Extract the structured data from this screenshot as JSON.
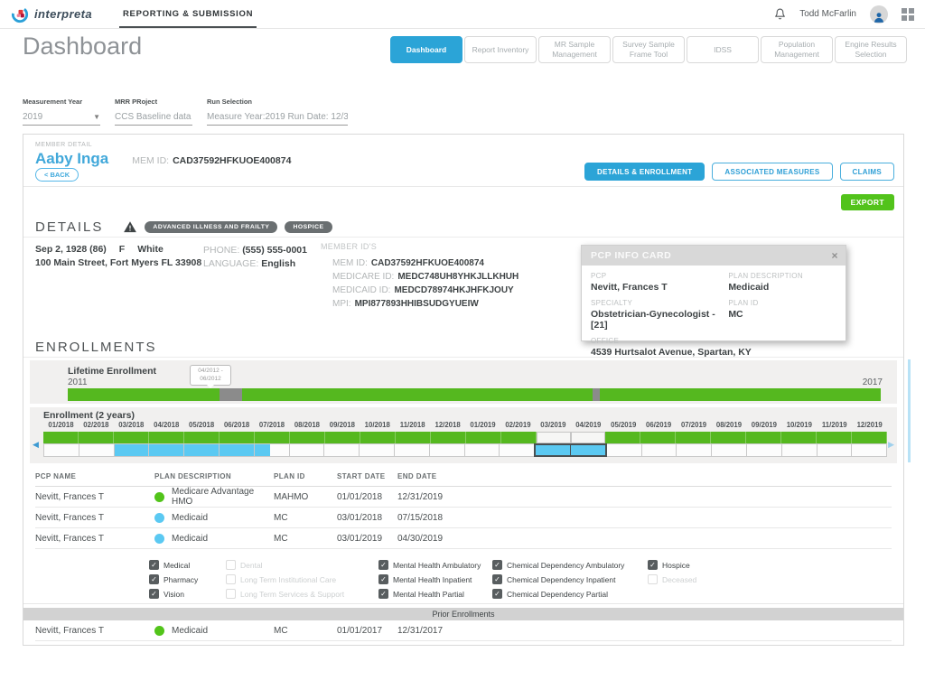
{
  "topbar": {
    "brand": "interpreta",
    "nav": "REPORTING & SUBMISSION",
    "user": "Todd McFarlin"
  },
  "header": {
    "title": "Dashboard",
    "tabs": [
      {
        "label": "Dashboard",
        "active": true
      },
      {
        "label": "Report Inventory",
        "active": false
      },
      {
        "label": "MR Sample Management",
        "active": false
      },
      {
        "label": "Survey Sample Frame Tool",
        "active": false
      },
      {
        "label": "IDSS",
        "active": false
      },
      {
        "label": "Population Management",
        "active": false
      },
      {
        "label": "Engine Results Selection",
        "active": false
      }
    ]
  },
  "filters": [
    {
      "label": "Measurement Year",
      "value": "2019"
    },
    {
      "label": "MRR PRoject",
      "value": "CCS Baseline data"
    },
    {
      "label": "Run Selection",
      "value": "Measure Year:2019  Run Date: 12/31..."
    }
  ],
  "member": {
    "section_label": "MEMBER DETAIL",
    "name": "Aaby Inga",
    "mem_id_label": "MEM ID:",
    "mem_id": "CAD37592HFKUOE400874",
    "back_label": "< BACK",
    "view_buttons": [
      {
        "label": "DETAILS & ENROLLMENT",
        "active": true
      },
      {
        "label": "ASSOCIATED MEASURES",
        "active": false
      },
      {
        "label": "CLAIMS",
        "active": false
      }
    ],
    "export_label": "EXPORT"
  },
  "details": {
    "heading": "DETAILS",
    "badges": [
      "ADVANCED ILLNESS AND FRAILTY",
      "HOSPICE"
    ],
    "dob": "Sep 2, 1928 (86)",
    "gender": "F",
    "race": "White",
    "address": "100 Main Street, Fort Myers FL 33908",
    "phone_label": "PHONE:",
    "phone": "(555) 555-0001",
    "language_label": "LANGUAGE:",
    "language": "English",
    "member_ids_label": "MEMBER ID'S",
    "ids": [
      {
        "label": "MEM ID:",
        "value": "CAD37592HFKUOE400874"
      },
      {
        "label": "MEDICARE ID:",
        "value": "MEDC748UH8YHKJLLKHUH"
      },
      {
        "label": "MEDICAID ID:",
        "value": "MEDCD78974HKJHFKJOUY"
      },
      {
        "label": "MPI:",
        "value": "MPI877893HHIBSUDGYUEIW"
      }
    ]
  },
  "pcp_card": {
    "title": "PCP INFO CARD",
    "close_icon": "×",
    "fields": [
      {
        "label": "PCP",
        "value": "Nevitt, Frances T"
      },
      {
        "label": "PLAN DESCRIPTION",
        "value": "Medicaid"
      },
      {
        "label": "SPECIALTY",
        "value": "Obstetrician-Gynecologist - [21]"
      },
      {
        "label": "PLAN ID",
        "value": "MC"
      },
      {
        "label": "OFFICE",
        "value": "4539 Hurtsalot Avenue, Spartan, KY"
      }
    ]
  },
  "enrollments": {
    "heading": "ENROLLMENTS",
    "lifetime": {
      "label": "Lifetime Enrollment",
      "start_year": "2011",
      "end_year": "2017",
      "tooltip_line1": "04/2012 -",
      "tooltip_line2": "06/2012",
      "segments": [
        {
          "from": 0,
          "to": 18.7,
          "color": "#55b81f"
        },
        {
          "from": 18.7,
          "to": 21.4,
          "color": "#8b8b8b"
        },
        {
          "from": 21.4,
          "to": 64.6,
          "color": "#55b81f"
        },
        {
          "from": 64.6,
          "to": 65.4,
          "color": "#8b8b8b"
        },
        {
          "from": 65.4,
          "to": 100,
          "color": "#55b81f"
        }
      ]
    },
    "two_year": {
      "label": "Enrollment (2 years)",
      "months": [
        "01/2018",
        "02/2018",
        "03/2018",
        "04/2018",
        "05/2018",
        "06/2018",
        "07/2018",
        "08/2018",
        "09/2018",
        "10/2018",
        "11/2018",
        "12/2018",
        "01/2019",
        "02/2019",
        "03/2019",
        "04/2019",
        "05/2019",
        "06/2019",
        "07/2019",
        "08/2019",
        "09/2019",
        "10/2019",
        "11/2019",
        "12/2019"
      ],
      "plan_row": [
        "green",
        "green",
        "green",
        "green",
        "green",
        "green",
        "green",
        "green",
        "green",
        "green",
        "green",
        "green",
        "green",
        "green",
        "empty",
        "empty",
        "green",
        "green",
        "green",
        "green",
        "green",
        "green",
        "green",
        "green"
      ],
      "secondary_row": [
        "blank",
        "blank",
        "blue",
        "blue",
        "blue",
        "blue",
        "half",
        "blank",
        "blank",
        "blank",
        "blank",
        "blank",
        "blank",
        "blank",
        "selected",
        "selected",
        "blank",
        "blank",
        "blank",
        "blank",
        "blank",
        "blank",
        "blank",
        "blank"
      ],
      "arrow_left": "◀",
      "arrow_right": "▶"
    }
  },
  "table": {
    "headers": [
      "PCP NAME",
      "PLAN DESCRIPTION",
      "PLAN ID",
      "START DATE",
      "END DATE"
    ],
    "rows": [
      {
        "pcp": "Nevitt, Frances T",
        "dot": "green",
        "plan": "Medicare Advantage HMO",
        "plan_id": "MAHMO",
        "start": "01/01/2018",
        "end": "12/31/2019"
      },
      {
        "pcp": "Nevitt, Frances T",
        "dot": "blue",
        "plan": "Medicaid",
        "plan_id": "MC",
        "start": "03/01/2018",
        "end": "07/15/2018"
      },
      {
        "pcp": "Nevitt, Frances T",
        "dot": "blue",
        "plan": "Medicaid",
        "plan_id": "MC",
        "start": "03/01/2019",
        "end": "04/30/2019"
      }
    ]
  },
  "benefits": {
    "columns": [
      [
        {
          "label": "Medical",
          "checked": true,
          "disabled": false
        },
        {
          "label": "Pharmacy",
          "checked": true,
          "disabled": false
        },
        {
          "label": "Vision",
          "checked": true,
          "disabled": false
        }
      ],
      [
        {
          "label": "Dental",
          "checked": false,
          "disabled": true
        },
        {
          "label": "Long Term Institutional Care",
          "checked": false,
          "disabled": true
        },
        {
          "label": "Long Term Services & Support",
          "checked": false,
          "disabled": true
        }
      ],
      [
        {
          "label": "Mental Health Ambulatory",
          "checked": true,
          "disabled": false
        },
        {
          "label": "Mental Health Inpatient",
          "checked": true,
          "disabled": false
        },
        {
          "label": "Mental Health Partial",
          "checked": true,
          "disabled": false
        }
      ],
      [
        {
          "label": "Chemical Dependency Ambulatory",
          "checked": true,
          "disabled": false
        },
        {
          "label": "Chemical Dependency Inpatient",
          "checked": true,
          "disabled": false
        },
        {
          "label": "Chemical Dependency Partial",
          "checked": true,
          "disabled": false
        }
      ],
      [
        {
          "label": "Hospice",
          "checked": true,
          "disabled": false
        },
        {
          "label": "Deceased",
          "checked": false,
          "disabled": true
        }
      ]
    ]
  },
  "prior": {
    "header": "Prior Enrollments",
    "rows": [
      {
        "pcp": "Nevitt, Frances T",
        "dot": "green",
        "plan": "Medicaid",
        "plan_id": "MC",
        "start": "01/01/2017",
        "end": "12/31/2017"
      }
    ]
  },
  "colors": {
    "green": "#52c41a",
    "blue": "#5bc9f2",
    "accent_blue": "#2ba4d7",
    "export_green": "#52c31b",
    "badge_gray": "#6a6f71"
  }
}
